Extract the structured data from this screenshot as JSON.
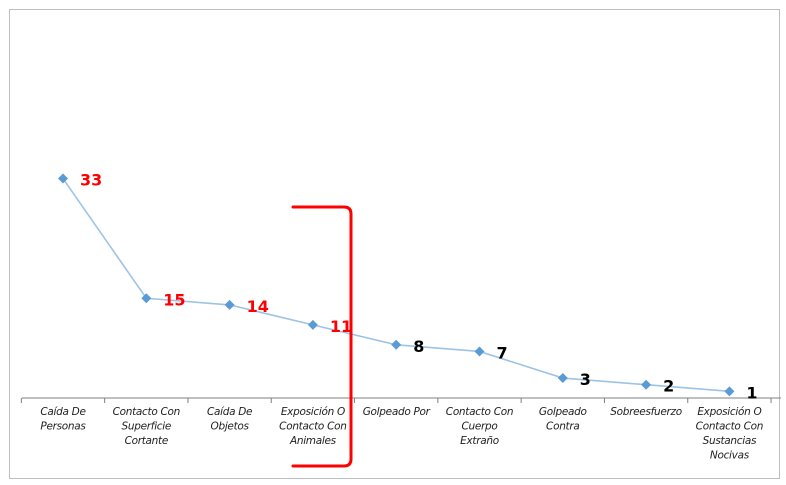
{
  "chart_data": {
    "type": "line",
    "title": "",
    "xlabel": "",
    "ylabel": "",
    "categories": [
      [
        "Caída De",
        "Personas"
      ],
      [
        "Contacto Con",
        "Superficie",
        "Cortante"
      ],
      [
        "Caída De",
        "Objetos"
      ],
      [
        "Exposición O",
        "Contacto Con",
        "Animales"
      ],
      [
        "Golpeado Por"
      ],
      [
        "Contacto Con",
        "Cuerpo",
        "Extraño"
      ],
      [
        "Golpeado",
        "Contra"
      ],
      [
        "Sobreesfuerzo"
      ],
      [
        "Exposición O",
        "Contacto Con",
        "Sustancias",
        "Nocivas"
      ]
    ],
    "values": [
      33,
      15,
      14,
      11,
      8,
      7,
      3,
      2,
      1
    ],
    "data_labels": [
      "33",
      "15",
      "14",
      "11",
      "8",
      "7",
      "3",
      "2",
      "1"
    ],
    "highlight_count": 4,
    "ylim": [
      0,
      60
    ],
    "grid": false,
    "legend": "none",
    "colors": {
      "line": "#9dc3e6",
      "marker": "#5b9bd5",
      "label_highlight": "#ff0000",
      "label_normal": "#000000",
      "bracket": "#ff0000",
      "axis": "#7f7f7f"
    }
  }
}
